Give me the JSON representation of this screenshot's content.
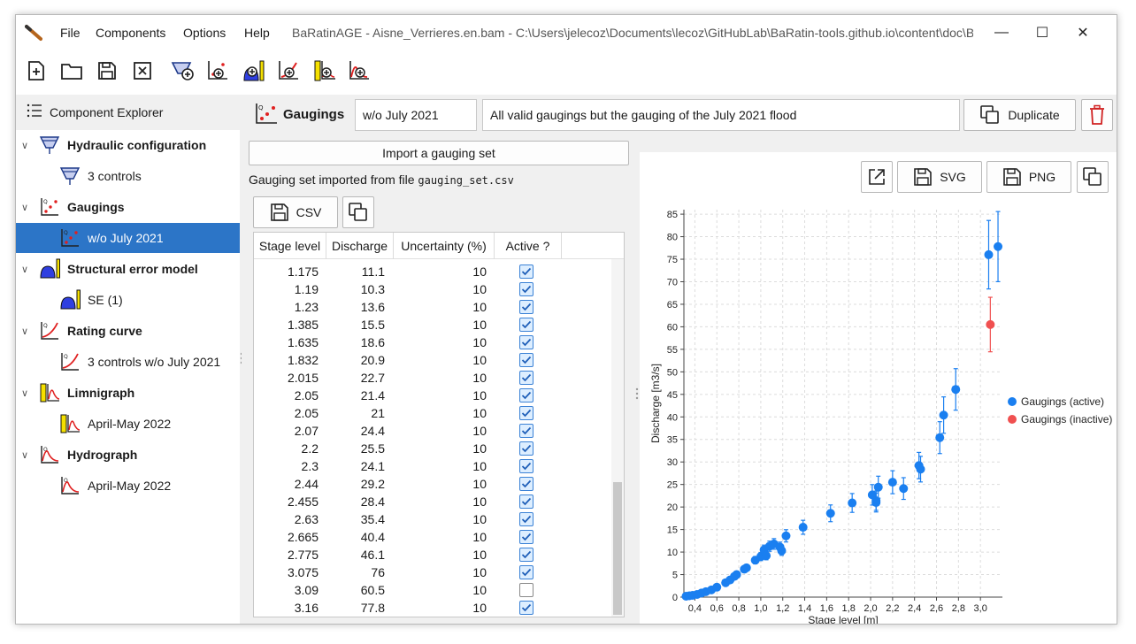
{
  "titlebar": {
    "menus": [
      "File",
      "Components",
      "Options",
      "Help"
    ],
    "title": "BaRatinAGE - Aisne_Verrieres.en.bam - C:\\Users\\jelecoz\\Documents\\lecoz\\GitHubLab\\BaRatin-tools.github.io\\content\\doc\\B...",
    "minimize": "—",
    "maximize": "☐",
    "close": "✕"
  },
  "toolbar": {
    "icons": [
      "new-file-icon",
      "open-folder-icon",
      "save-icon",
      "close-file-icon",
      "add-hydraulic-config-icon",
      "add-gaugings-icon",
      "add-structural-error-icon",
      "add-rating-curve-icon",
      "add-limnigraph-icon",
      "add-hydrograph-icon"
    ]
  },
  "explorer": {
    "title": "Component Explorer",
    "items": [
      {
        "label": "Hydraulic configuration",
        "bold": true,
        "icon": "hydraulic-config-icon"
      },
      {
        "label": "3 controls",
        "bold": false,
        "icon": "hydraulic-config-icon"
      },
      {
        "label": "Gaugings",
        "bold": true,
        "icon": "gaugings-icon"
      },
      {
        "label": "w/o July 2021",
        "bold": false,
        "icon": "gaugings-icon",
        "selected": true
      },
      {
        "label": "Structural error model",
        "bold": true,
        "icon": "structural-error-icon"
      },
      {
        "label": "SE (1)",
        "bold": false,
        "icon": "structural-error-icon"
      },
      {
        "label": "Rating curve",
        "bold": true,
        "icon": "rating-curve-icon"
      },
      {
        "label": "3 controls w/o July 2021",
        "bold": false,
        "icon": "rating-curve-icon"
      },
      {
        "label": "Limnigraph",
        "bold": true,
        "icon": "limnigraph-icon"
      },
      {
        "label": "April-May 2022",
        "bold": false,
        "icon": "limnigraph-icon"
      },
      {
        "label": "Hydrograph",
        "bold": true,
        "icon": "hydrograph-icon"
      },
      {
        "label": "April-May 2022",
        "bold": false,
        "icon": "hydrograph-icon"
      }
    ]
  },
  "header": {
    "title": "Gaugings",
    "name_value": "w/o July 2021",
    "description_value": "All valid gaugings but the gauging of the July 2021 flood",
    "duplicate_label": "Duplicate"
  },
  "gaugings": {
    "import_label": "Import a gauging set",
    "imported_prefix": "Gauging set imported from file",
    "imported_file": "gauging_set.csv",
    "csv_label": "CSV",
    "columns": [
      "Stage level",
      "Discharge",
      "Uncertainty (%)",
      "Active ?"
    ],
    "rows": [
      [
        "1.175",
        "11.1",
        "10",
        true
      ],
      [
        "1.19",
        "10.3",
        "10",
        true
      ],
      [
        "1.23",
        "13.6",
        "10",
        true
      ],
      [
        "1.385",
        "15.5",
        "10",
        true
      ],
      [
        "1.635",
        "18.6",
        "10",
        true
      ],
      [
        "1.832",
        "20.9",
        "10",
        true
      ],
      [
        "2.015",
        "22.7",
        "10",
        true
      ],
      [
        "2.05",
        "21.4",
        "10",
        true
      ],
      [
        "2.05",
        "21",
        "10",
        true
      ],
      [
        "2.07",
        "24.4",
        "10",
        true
      ],
      [
        "2.2",
        "25.5",
        "10",
        true
      ],
      [
        "2.3",
        "24.1",
        "10",
        true
      ],
      [
        "2.44",
        "29.2",
        "10",
        true
      ],
      [
        "2.455",
        "28.4",
        "10",
        true
      ],
      [
        "2.63",
        "35.4",
        "10",
        true
      ],
      [
        "2.665",
        "40.4",
        "10",
        true
      ],
      [
        "2.775",
        "46.1",
        "10",
        true
      ],
      [
        "3.075",
        "76",
        "10",
        true
      ],
      [
        "3.09",
        "60.5",
        "10",
        false
      ],
      [
        "3.16",
        "77.8",
        "10",
        true
      ]
    ]
  },
  "plot_toolbar": {
    "svg_label": "SVG",
    "png_label": "PNG"
  },
  "chart_data": {
    "type": "scatter",
    "title": "",
    "xlabel": "Stage level [m]",
    "ylabel": "Discharge [m3/s]",
    "xlim": [
      0.3,
      3.2
    ],
    "ylim": [
      0,
      86
    ],
    "xticks": [
      "0,4",
      "0,6",
      "0,8",
      "1,0",
      "1,2",
      "1,4",
      "1,6",
      "1,8",
      "2,0",
      "2,2",
      "2,4",
      "2,6",
      "2,8",
      "3,0"
    ],
    "xtick_values": [
      0.4,
      0.6,
      0.8,
      1.0,
      1.2,
      1.4,
      1.6,
      1.8,
      2.0,
      2.2,
      2.4,
      2.6,
      2.8,
      3.0
    ],
    "yticks": [
      0,
      5,
      10,
      15,
      20,
      25,
      30,
      35,
      40,
      45,
      50,
      55,
      60,
      65,
      70,
      75,
      80,
      85
    ],
    "grid": true,
    "legend_position": "right",
    "series": [
      {
        "name": "Gaugings (active)",
        "color": "#1a7ff0",
        "x": [
          0.32,
          0.35,
          0.38,
          0.42,
          0.46,
          0.5,
          0.55,
          0.6,
          0.68,
          0.72,
          0.76,
          0.78,
          0.85,
          0.87,
          0.95,
          1.0,
          1.03,
          1.05,
          1.08,
          1.12,
          1.175,
          1.19,
          1.23,
          1.385,
          1.635,
          1.832,
          2.015,
          2.05,
          2.05,
          2.07,
          2.2,
          2.3,
          2.44,
          2.455,
          2.63,
          2.665,
          2.775,
          3.075,
          3.16
        ],
        "y": [
          0.2,
          0.3,
          0.4,
          0.6,
          0.9,
          1.2,
          1.6,
          2.2,
          3.2,
          3.8,
          4.6,
          5.0,
          6.2,
          6.5,
          8.2,
          9.0,
          10.5,
          9.2,
          11.3,
          11.8,
          11.1,
          10.3,
          13.6,
          15.5,
          18.6,
          20.9,
          22.7,
          21.4,
          21,
          24.4,
          25.5,
          24.1,
          29.2,
          28.4,
          35.4,
          40.4,
          46.1,
          76,
          77.8
        ]
      },
      {
        "name": "Gaugings (inactive)",
        "color": "#f05050",
        "x": [
          3.09
        ],
        "y": [
          60.5
        ]
      }
    ],
    "uncertainty_percent": 10
  }
}
